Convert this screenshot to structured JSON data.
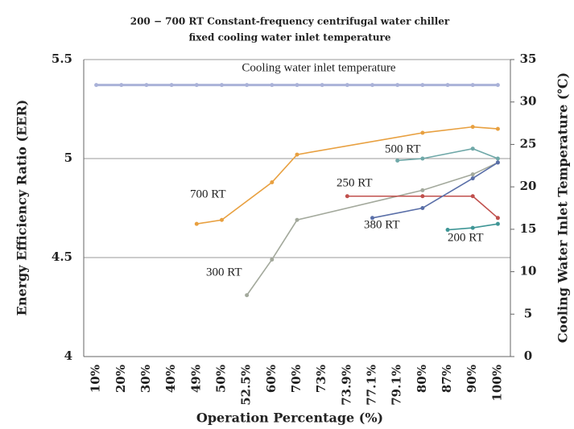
{
  "chart_data": {
    "type": "line",
    "title": [
      "200 − 700 RT Constant-frequency centrifugal water chiller",
      "fixed cooling water inlet temperature"
    ],
    "x_label": "Operation Percentage (%)",
    "y_label": "Energy Efficiency Ratio (EER)",
    "y2_label": "Cooling Water Inlet Temperature (℃)",
    "categories": [
      "10%",
      "20%",
      "30%",
      "40%",
      "49%",
      "50%",
      "52.5%",
      "60%",
      "70%",
      "73%",
      "73.9%",
      "77.1%",
      "79.1%",
      "80%",
      "87%",
      "90%",
      "100%"
    ],
    "ylim": [
      4,
      5.5
    ],
    "yticks": [
      4,
      4.5,
      5,
      5.5
    ],
    "y2lim": [
      0,
      35
    ],
    "y2ticks": [
      0,
      5,
      10,
      15,
      20,
      25,
      30,
      35
    ],
    "grid": true,
    "series": [
      {
        "name": "700 RT",
        "color": "#e8a040",
        "x": [
          "49%",
          "50%",
          "60%",
          "70%",
          "80%",
          "90%",
          "100%"
        ],
        "values": [
          4.67,
          4.69,
          4.88,
          5.02,
          5.13,
          5.16,
          5.15
        ]
      },
      {
        "name": "300 RT",
        "color": "#a3a99c",
        "x": [
          "52.5%",
          "60%",
          "70%",
          "80%",
          "90%",
          "100%"
        ],
        "values": [
          4.31,
          4.49,
          4.69,
          4.84,
          4.92,
          4.98
        ]
      },
      {
        "name": "500 RT",
        "color": "#6fa8a8",
        "x": [
          "79.1%",
          "80%",
          "90%",
          "100%"
        ],
        "values": [
          4.99,
          5.0,
          5.05,
          5.0
        ]
      },
      {
        "name": "250 RT",
        "color": "#c0504d",
        "x": [
          "73.9%",
          "80%",
          "90%",
          "100%"
        ],
        "values": [
          4.81,
          4.81,
          4.81,
          4.7
        ]
      },
      {
        "name": "380 RT",
        "color": "#5a6fa8",
        "x": [
          "77.1%",
          "80%",
          "90%",
          "100%"
        ],
        "values": [
          4.7,
          4.75,
          4.9,
          4.98
        ]
      },
      {
        "name": "200 RT",
        "color": "#3f9696",
        "x": [
          "87%",
          "90%",
          "100%"
        ],
        "values": [
          4.64,
          4.65,
          4.67
        ]
      },
      {
        "name": "Cooling water inlet temperature",
        "color": "#aab2d8",
        "axis": "y2",
        "x": [
          "10%",
          "20%",
          "30%",
          "40%",
          "49%",
          "50%",
          "52.5%",
          "60%",
          "70%",
          "73%",
          "73.9%",
          "77.1%",
          "79.1%",
          "80%",
          "87%",
          "90%",
          "100%"
        ],
        "values": [
          32,
          32,
          32,
          32,
          32,
          32,
          32,
          32,
          32,
          32,
          32,
          32,
          32,
          32,
          32,
          32,
          32
        ]
      }
    ]
  }
}
